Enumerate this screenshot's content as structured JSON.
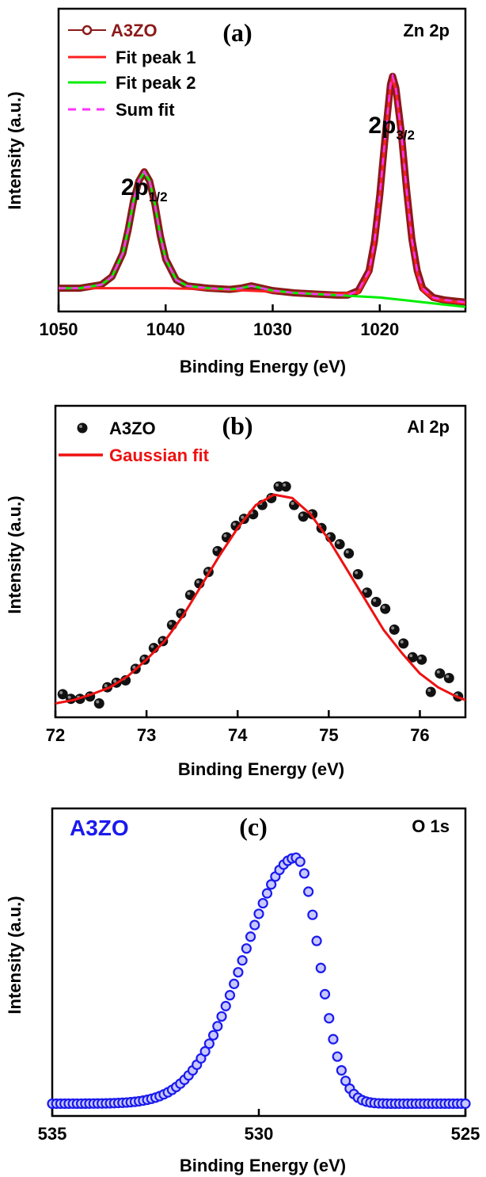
{
  "chart_data": [
    {
      "type": "line",
      "panel_label": "(a)",
      "annotation": "Zn 2p",
      "xlabel": "Binding Energy (eV)",
      "ylabel": "Intensity (a.u.)",
      "xlim": [
        1050,
        1012
      ],
      "ylim": [
        0,
        2.6
      ],
      "x_reversed": true,
      "xticks": [
        1050,
        1040,
        1030,
        1020
      ],
      "xtick_labels": [
        "1050",
        "1040",
        "1030",
        "1020"
      ],
      "grid": false,
      "legend_position": "top-left",
      "peak_labels": [
        {
          "base": "2p",
          "sub": "1/2",
          "x": 1042.0
        },
        {
          "base": "2p",
          "sub": "3/2",
          "x": 1018.9
        }
      ],
      "series": [
        {
          "name": "A3ZO",
          "style": "open-circle-line",
          "color": "#8b1a1a",
          "x": [
            1050,
            1048,
            1046,
            1045,
            1044,
            1043.5,
            1043,
            1042.5,
            1042,
            1041.5,
            1041,
            1040.5,
            1040,
            1039,
            1038,
            1036,
            1034,
            1033,
            1032,
            1031,
            1030,
            1028,
            1026,
            1024,
            1023,
            1022,
            1021,
            1020.5,
            1020,
            1019.5,
            1019,
            1018.8,
            1018.5,
            1018,
            1017.5,
            1017,
            1016.5,
            1016,
            1015,
            1014,
            1013,
            1012
          ],
          "y": [
            0.2,
            0.2,
            0.23,
            0.3,
            0.5,
            0.7,
            0.95,
            1.12,
            1.2,
            1.12,
            0.92,
            0.65,
            0.45,
            0.27,
            0.22,
            0.2,
            0.19,
            0.2,
            0.22,
            0.2,
            0.18,
            0.16,
            0.15,
            0.14,
            0.14,
            0.18,
            0.35,
            0.6,
            1.0,
            1.5,
            1.95,
            2.02,
            1.92,
            1.55,
            1.05,
            0.62,
            0.35,
            0.2,
            0.12,
            0.1,
            0.09,
            0.08
          ]
        },
        {
          "name": "Fit peak 1",
          "style": "line",
          "color": "#ff2020",
          "x": [
            1050,
            1045,
            1040,
            1035,
            1030,
            1025,
            1022,
            1021,
            1020.5,
            1020,
            1019.5,
            1019,
            1018.8,
            1018.5,
            1018,
            1017.5,
            1017,
            1016.5,
            1016,
            1015,
            1014,
            1013,
            1012
          ],
          "y": [
            0.2,
            0.2,
            0.2,
            0.19,
            0.17,
            0.15,
            0.16,
            0.33,
            0.58,
            0.98,
            1.48,
            1.93,
            2.0,
            1.9,
            1.53,
            1.03,
            0.6,
            0.33,
            0.18,
            0.11,
            0.09,
            0.08,
            0.07
          ]
        },
        {
          "name": "Fit peak 2",
          "style": "line",
          "color": "#00ee00",
          "x": [
            1050,
            1048,
            1046,
            1045,
            1044,
            1043.5,
            1043,
            1042.5,
            1042,
            1041.5,
            1041,
            1040.5,
            1040,
            1039,
            1038,
            1036,
            1034,
            1033,
            1032,
            1031,
            1030,
            1028,
            1026,
            1024,
            1022,
            1020,
            1018,
            1016,
            1014,
            1012
          ],
          "y": [
            0.2,
            0.2,
            0.23,
            0.3,
            0.5,
            0.7,
            0.95,
            1.12,
            1.2,
            1.12,
            0.92,
            0.65,
            0.45,
            0.27,
            0.22,
            0.2,
            0.19,
            0.2,
            0.22,
            0.2,
            0.18,
            0.16,
            0.15,
            0.14,
            0.13,
            0.12,
            0.1,
            0.08,
            0.06,
            0.04
          ]
        },
        {
          "name": "Sum fit",
          "style": "dashed",
          "color": "#ff33ff",
          "x": [
            1050,
            1048,
            1046,
            1045,
            1044,
            1043.5,
            1043,
            1042.5,
            1042,
            1041.5,
            1041,
            1040.5,
            1040,
            1039,
            1038,
            1036,
            1034,
            1033,
            1032,
            1031,
            1030,
            1028,
            1026,
            1024,
            1023,
            1022,
            1021,
            1020.5,
            1020,
            1019.5,
            1019,
            1018.8,
            1018.5,
            1018,
            1017.5,
            1017,
            1016.5,
            1016,
            1015,
            1014,
            1013,
            1012
          ],
          "y": [
            0.2,
            0.2,
            0.23,
            0.3,
            0.5,
            0.7,
            0.95,
            1.12,
            1.2,
            1.12,
            0.92,
            0.65,
            0.45,
            0.27,
            0.22,
            0.2,
            0.19,
            0.2,
            0.22,
            0.2,
            0.18,
            0.16,
            0.15,
            0.14,
            0.14,
            0.18,
            0.35,
            0.6,
            1.0,
            1.5,
            1.95,
            2.02,
            1.92,
            1.55,
            1.05,
            0.62,
            0.35,
            0.2,
            0.12,
            0.1,
            0.09,
            0.08
          ]
        }
      ]
    },
    {
      "type": "scatter",
      "panel_label": "(b)",
      "annotation": "Al 2p",
      "xlabel": "Binding Energy (eV)",
      "ylabel": "Intensity (a.u.)",
      "xlim": [
        72,
        76.5
      ],
      "ylim": [
        0,
        1.35
      ],
      "x_reversed": false,
      "xticks": [
        72,
        73,
        74,
        75,
        76
      ],
      "xtick_labels": [
        "72",
        "73",
        "74",
        "75",
        "76"
      ],
      "grid": false,
      "legend_position": "top-left",
      "series": [
        {
          "name": "A3ZO",
          "style": "filled-circle",
          "color": "#111111",
          "x": [
            72.08,
            72.17,
            72.27,
            72.38,
            72.48,
            72.57,
            72.67,
            72.77,
            72.88,
            72.98,
            73.08,
            73.18,
            73.28,
            73.38,
            73.48,
            73.58,
            73.68,
            73.78,
            73.88,
            73.98,
            74.07,
            74.17,
            74.27,
            74.37,
            74.45,
            74.53,
            74.62,
            74.72,
            74.82,
            74.92,
            75.02,
            75.12,
            75.22,
            75.32,
            75.42,
            75.52,
            75.62,
            75.72,
            75.82,
            75.92,
            76.02,
            76.12,
            76.22,
            76.32,
            76.42
          ],
          "y": [
            0.1,
            0.08,
            0.08,
            0.09,
            0.06,
            0.13,
            0.15,
            0.16,
            0.21,
            0.25,
            0.3,
            0.33,
            0.4,
            0.45,
            0.53,
            0.58,
            0.63,
            0.72,
            0.78,
            0.83,
            0.86,
            0.88,
            0.92,
            0.95,
            1.0,
            1.0,
            0.92,
            0.87,
            0.88,
            0.82,
            0.78,
            0.75,
            0.71,
            0.62,
            0.54,
            0.5,
            0.47,
            0.38,
            0.32,
            0.26,
            0.25,
            0.11,
            0.19,
            0.17,
            0.09
          ]
        },
        {
          "name": "Gaussian fit",
          "style": "line",
          "color": "#ee1111",
          "x": [
            72.0,
            72.2,
            72.4,
            72.6,
            72.8,
            73.0,
            73.2,
            73.4,
            73.6,
            73.8,
            74.0,
            74.2,
            74.4,
            74.6,
            74.8,
            75.0,
            75.2,
            75.4,
            75.6,
            75.8,
            76.0,
            76.2,
            76.4,
            76.5
          ],
          "y": [
            0.06,
            0.075,
            0.1,
            0.13,
            0.18,
            0.25,
            0.33,
            0.44,
            0.57,
            0.7,
            0.82,
            0.92,
            0.965,
            0.95,
            0.88,
            0.77,
            0.64,
            0.51,
            0.38,
            0.28,
            0.19,
            0.13,
            0.09,
            0.075
          ]
        }
      ]
    },
    {
      "type": "scatter",
      "panel_label": "(c)",
      "annotation": "O 1s",
      "legend_text": "A3ZO",
      "xlabel": "Binding Energy (eV)",
      "ylabel": "Intensity (a.u.)",
      "xlim": [
        535,
        525
      ],
      "ylim": [
        0,
        1.25
      ],
      "x_reversed": true,
      "xticks": [
        535,
        530,
        525
      ],
      "xtick_labels": [
        "535",
        "530",
        "525"
      ],
      "grid": false,
      "legend_position": "top-left",
      "series": [
        {
          "name": "A3ZO",
          "style": "open-circle",
          "color": "#1a1aee",
          "curve": "gaussian",
          "x_points": [
            535.0,
            525.0
          ],
          "point_spacing": 0.1,
          "baseline": 0.05,
          "peak_center": 529.1,
          "peak_height": 1.0,
          "sigma_high_energy_side": 1.25,
          "sigma_low_energy_side": 0.55
        }
      ]
    }
  ]
}
